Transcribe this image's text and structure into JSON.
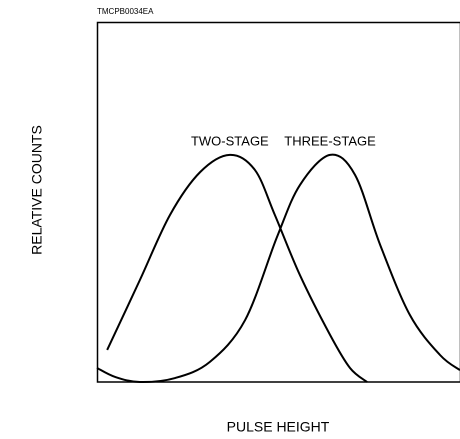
{
  "chart_data": {
    "type": "line",
    "code": "TMCPB0034EA",
    "xlabel": "PULSE HEIGHT",
    "ylabel": "RELATIVE COUNTS",
    "xlim": [
      0,
      100
    ],
    "ylim": [
      0,
      100
    ],
    "series": [
      {
        "name": "TWO-STAGE",
        "color": "#000000",
        "x": [
          2.8,
          11.8,
          20.1,
          28.4,
          36.6,
          43.5,
          49.0,
          55.9,
          64.2,
          69.7,
          74.4
        ],
        "values": [
          8.9,
          28.3,
          46.4,
          58.3,
          63.1,
          58.9,
          46.4,
          29.7,
          13.1,
          3.9,
          0
        ]
      },
      {
        "name": "THREE-STAGE",
        "color": "#000000",
        "x": [
          0,
          5.0,
          11.8,
          21.5,
          31.1,
          40.8,
          49.6,
          55.9,
          64.2,
          71.1,
          78.0,
          86.2,
          94.5,
          100
        ],
        "values": [
          3.9,
          1.4,
          0,
          1.1,
          5.6,
          17.2,
          40.3,
          54.7,
          63.1,
          57.5,
          38.1,
          18.6,
          7.5,
          3.3
        ]
      }
    ]
  }
}
